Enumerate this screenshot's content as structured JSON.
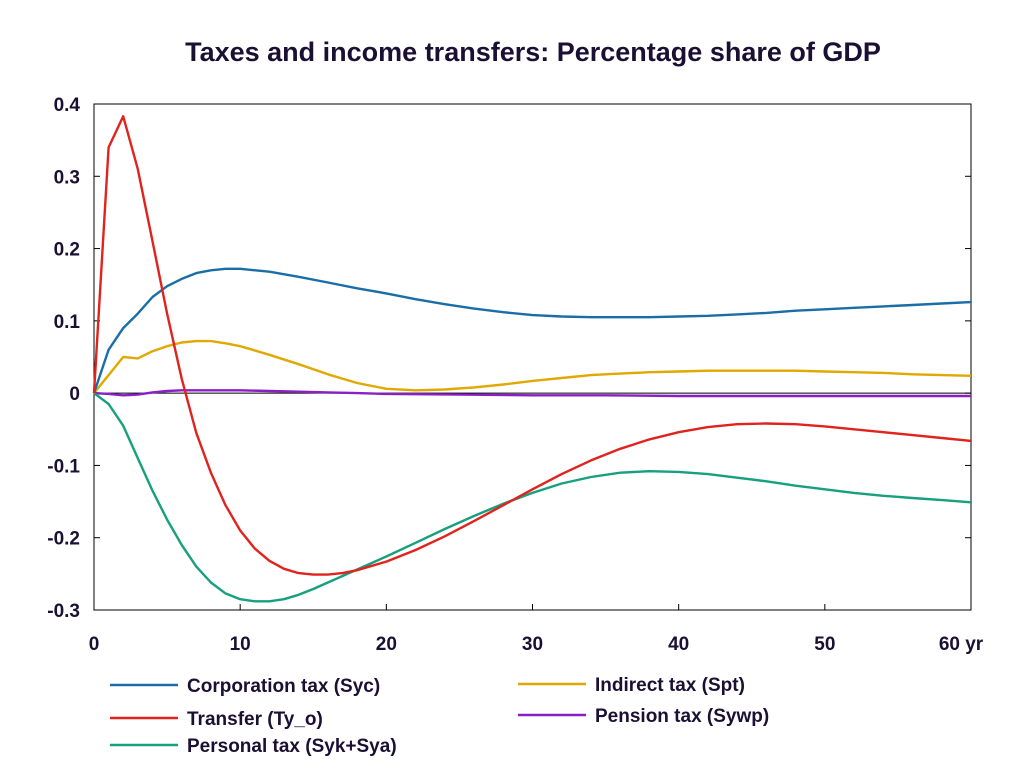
{
  "chart_data": {
    "type": "line",
    "title": "Taxes and income transfers: Percentage share of GDP",
    "xlabel": "",
    "ylabel": "",
    "xlim": [
      0,
      60
    ],
    "ylim": [
      -0.3,
      0.4
    ],
    "x_ticks": [
      {
        "value": 0,
        "label": "0"
      },
      {
        "value": 10,
        "label": "10"
      },
      {
        "value": 20,
        "label": "20"
      },
      {
        "value": 30,
        "label": "30"
      },
      {
        "value": 40,
        "label": "40"
      },
      {
        "value": 50,
        "label": "50"
      },
      {
        "value": 60,
        "label": "60 yr"
      }
    ],
    "y_ticks": [
      {
        "value": 0.4,
        "label": "0.4"
      },
      {
        "value": 0.3,
        "label": "0.3"
      },
      {
        "value": 0.2,
        "label": "0.2"
      },
      {
        "value": 0.1,
        "label": "0.1"
      },
      {
        "value": 0,
        "label": "0"
      },
      {
        "value": -0.1,
        "label": "-0.1"
      },
      {
        "value": -0.2,
        "label": "-0.2"
      },
      {
        "value": -0.3,
        "label": "-0.3"
      }
    ],
    "grid": false,
    "legend_position": "bottom",
    "series": [
      {
        "name": "Corporation tax (Syc)",
        "color": "#1a6ea8",
        "x": [
          0,
          1,
          2,
          3,
          4,
          5,
          6,
          7,
          8,
          9,
          10,
          12,
          14,
          16,
          18,
          20,
          22,
          24,
          26,
          28,
          30,
          32,
          34,
          36,
          38,
          40,
          42,
          44,
          46,
          48,
          50,
          52,
          54,
          56,
          58,
          60
        ],
        "y": [
          0,
          0.06,
          0.09,
          0.11,
          0.133,
          0.148,
          0.158,
          0.166,
          0.17,
          0.172,
          0.172,
          0.168,
          0.161,
          0.153,
          0.145,
          0.138,
          0.13,
          0.123,
          0.117,
          0.112,
          0.108,
          0.106,
          0.105,
          0.105,
          0.105,
          0.106,
          0.107,
          0.109,
          0.111,
          0.114,
          0.116,
          0.118,
          0.12,
          0.122,
          0.124,
          0.126
        ]
      },
      {
        "name": "Transfer (Ty_o)",
        "color": "#e0231d",
        "x": [
          0,
          1,
          2,
          3,
          4,
          5,
          6,
          7,
          8,
          9,
          10,
          11,
          12,
          13,
          14,
          15,
          16,
          17,
          18,
          20,
          22,
          24,
          26,
          28,
          30,
          32,
          34,
          36,
          38,
          40,
          42,
          44,
          46,
          48,
          50,
          52,
          54,
          56,
          58,
          60
        ],
        "y": [
          0,
          0.34,
          0.383,
          0.31,
          0.21,
          0.11,
          0.02,
          -0.055,
          -0.11,
          -0.155,
          -0.19,
          -0.215,
          -0.232,
          -0.243,
          -0.249,
          -0.251,
          -0.251,
          -0.249,
          -0.245,
          -0.233,
          -0.217,
          -0.198,
          -0.177,
          -0.155,
          -0.133,
          -0.112,
          -0.093,
          -0.077,
          -0.064,
          -0.054,
          -0.047,
          -0.043,
          -0.042,
          -0.043,
          -0.046,
          -0.05,
          -0.054,
          -0.058,
          -0.062,
          -0.066
        ]
      },
      {
        "name": "Personal tax (Syk+Sya)",
        "color": "#17a07d",
        "x": [
          0,
          1,
          2,
          3,
          4,
          5,
          6,
          7,
          8,
          9,
          10,
          11,
          12,
          13,
          14,
          15,
          16,
          18,
          20,
          22,
          24,
          26,
          28,
          30,
          32,
          34,
          36,
          38,
          40,
          42,
          44,
          46,
          48,
          50,
          52,
          54,
          56,
          58,
          60
        ],
        "y": [
          0,
          -0.015,
          -0.045,
          -0.09,
          -0.135,
          -0.175,
          -0.21,
          -0.24,
          -0.262,
          -0.277,
          -0.285,
          -0.288,
          -0.288,
          -0.285,
          -0.279,
          -0.271,
          -0.262,
          -0.244,
          -0.226,
          -0.207,
          -0.188,
          -0.17,
          -0.153,
          -0.138,
          -0.125,
          -0.116,
          -0.11,
          -0.108,
          -0.109,
          -0.112,
          -0.117,
          -0.122,
          -0.128,
          -0.133,
          -0.138,
          -0.142,
          -0.145,
          -0.148,
          -0.151
        ]
      },
      {
        "name": "Indirect tax (Spt)",
        "color": "#e0a800",
        "x": [
          0,
          1,
          2,
          3,
          4,
          5,
          6,
          7,
          8,
          9,
          10,
          12,
          14,
          16,
          18,
          20,
          22,
          24,
          26,
          28,
          30,
          32,
          34,
          36,
          38,
          40,
          42,
          44,
          46,
          48,
          50,
          52,
          54,
          56,
          58,
          60
        ],
        "y": [
          0,
          0.025,
          0.05,
          0.048,
          0.058,
          0.065,
          0.07,
          0.072,
          0.072,
          0.069,
          0.065,
          0.053,
          0.04,
          0.026,
          0.014,
          0.006,
          0.004,
          0.005,
          0.008,
          0.012,
          0.017,
          0.021,
          0.025,
          0.027,
          0.029,
          0.03,
          0.031,
          0.031,
          0.031,
          0.031,
          0.03,
          0.029,
          0.028,
          0.026,
          0.025,
          0.024
        ]
      },
      {
        "name": "Pension tax (Sywp)",
        "color": "#8b1fc4",
        "x": [
          0,
          1,
          2,
          3,
          4,
          5,
          6,
          7,
          8,
          10,
          12,
          14,
          16,
          18,
          20,
          25,
          30,
          35,
          40,
          45,
          50,
          55,
          60
        ],
        "y": [
          0,
          -0.001,
          -0.003,
          -0.002,
          0.001,
          0.003,
          0.004,
          0.004,
          0.004,
          0.004,
          0.003,
          0.002,
          0.001,
          0.0,
          -0.001,
          -0.002,
          -0.003,
          -0.003,
          -0.004,
          -0.004,
          -0.004,
          -0.004,
          -0.004
        ]
      }
    ]
  }
}
